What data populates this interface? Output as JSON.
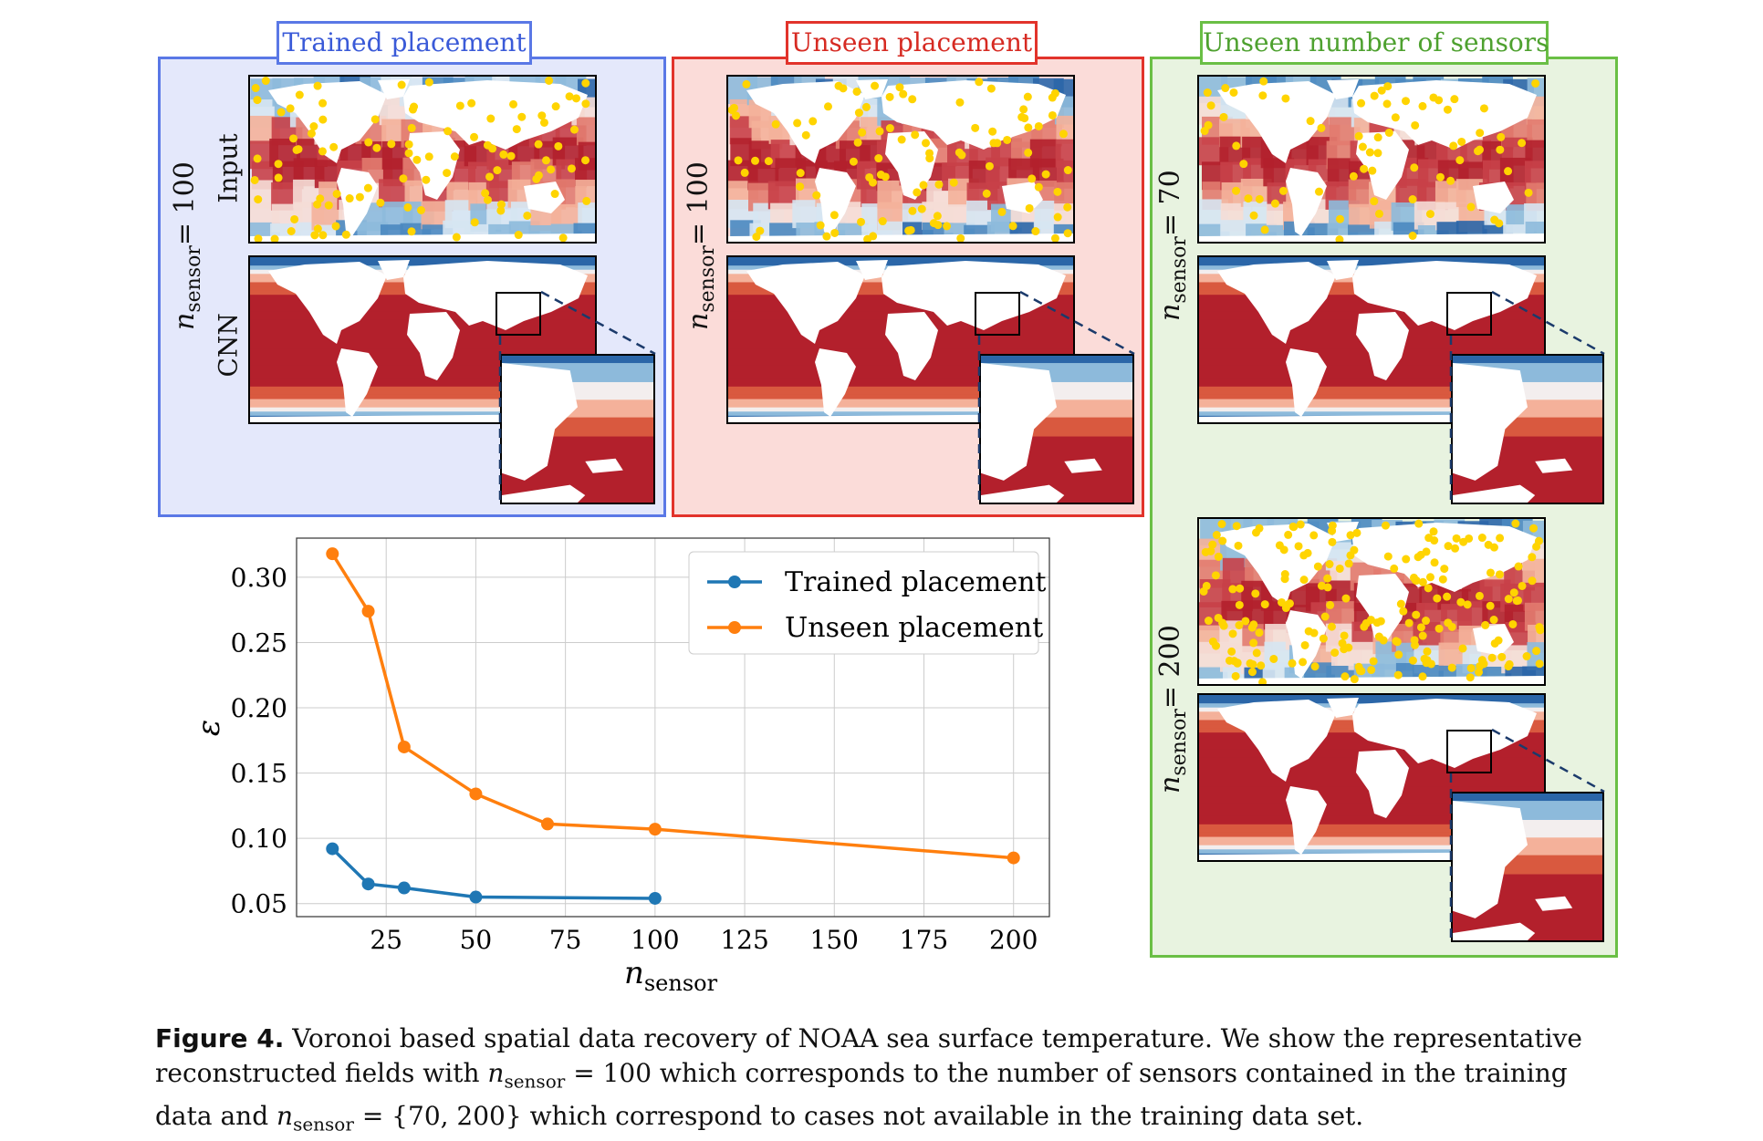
{
  "panels": {
    "trained": {
      "title": "Trained placement",
      "row_label": "= 100",
      "input_label": "Input",
      "cnn_label": "CNN"
    },
    "unseen": {
      "title": "Unseen placement",
      "row_label": "= 100"
    },
    "unseen_number": {
      "title": "Unseen number of sensors",
      "row_label_a": "= 70",
      "row_label_b": "= 200"
    }
  },
  "n_symbol": "n",
  "n_subscript": "sensor",
  "colors": {
    "blue_panel": "#5a78e6",
    "blue_bg": "#e4e8fb",
    "red_panel": "#e2332b",
    "red_bg": "#fbdcd9",
    "green_panel": "#6abf45",
    "green_bg": "#e8f3e0",
    "sensor": "#ffd400",
    "series_trained": "#1f77b4",
    "series_unseen": "#ff7f0e"
  },
  "chart_data": {
    "type": "line",
    "ylabel": "ε",
    "xlabel_symbol": "n",
    "xlabel_sub": "sensor",
    "xlim": [
      0,
      210
    ],
    "ylim": [
      0.04,
      0.33
    ],
    "xticks": [
      25,
      50,
      75,
      100,
      125,
      150,
      175,
      200
    ],
    "yticks": [
      0.05,
      0.1,
      0.15,
      0.2,
      0.25,
      0.3
    ],
    "ytick_labels": [
      "0.05",
      "0.10",
      "0.15",
      "0.20",
      "0.25",
      "0.30"
    ],
    "grid": true,
    "legend_position": "top-right",
    "series": [
      {
        "name": "Trained placement",
        "color": "#1f77b4",
        "x": [
          10,
          20,
          30,
          50,
          100
        ],
        "y": [
          0.092,
          0.065,
          0.062,
          0.055,
          0.054
        ]
      },
      {
        "name": "Unseen placement",
        "color": "#ff7f0e",
        "x": [
          10,
          20,
          30,
          50,
          70,
          100,
          200
        ],
        "y": [
          0.318,
          0.274,
          0.17,
          0.134,
          0.111,
          0.107,
          0.085
        ]
      }
    ]
  },
  "caption": {
    "figure_label": "Figure 4.",
    "text1": " Voronoi based spatial data recovery of NOAA sea surface temperature. We show the representative reconstructed fields with ",
    "eq1": " = 100 which corresponds to the number of sensors contained in the training data and ",
    "eq2": " = {70, 200}",
    "text2": " which correspond to cases not available in the training data set."
  }
}
